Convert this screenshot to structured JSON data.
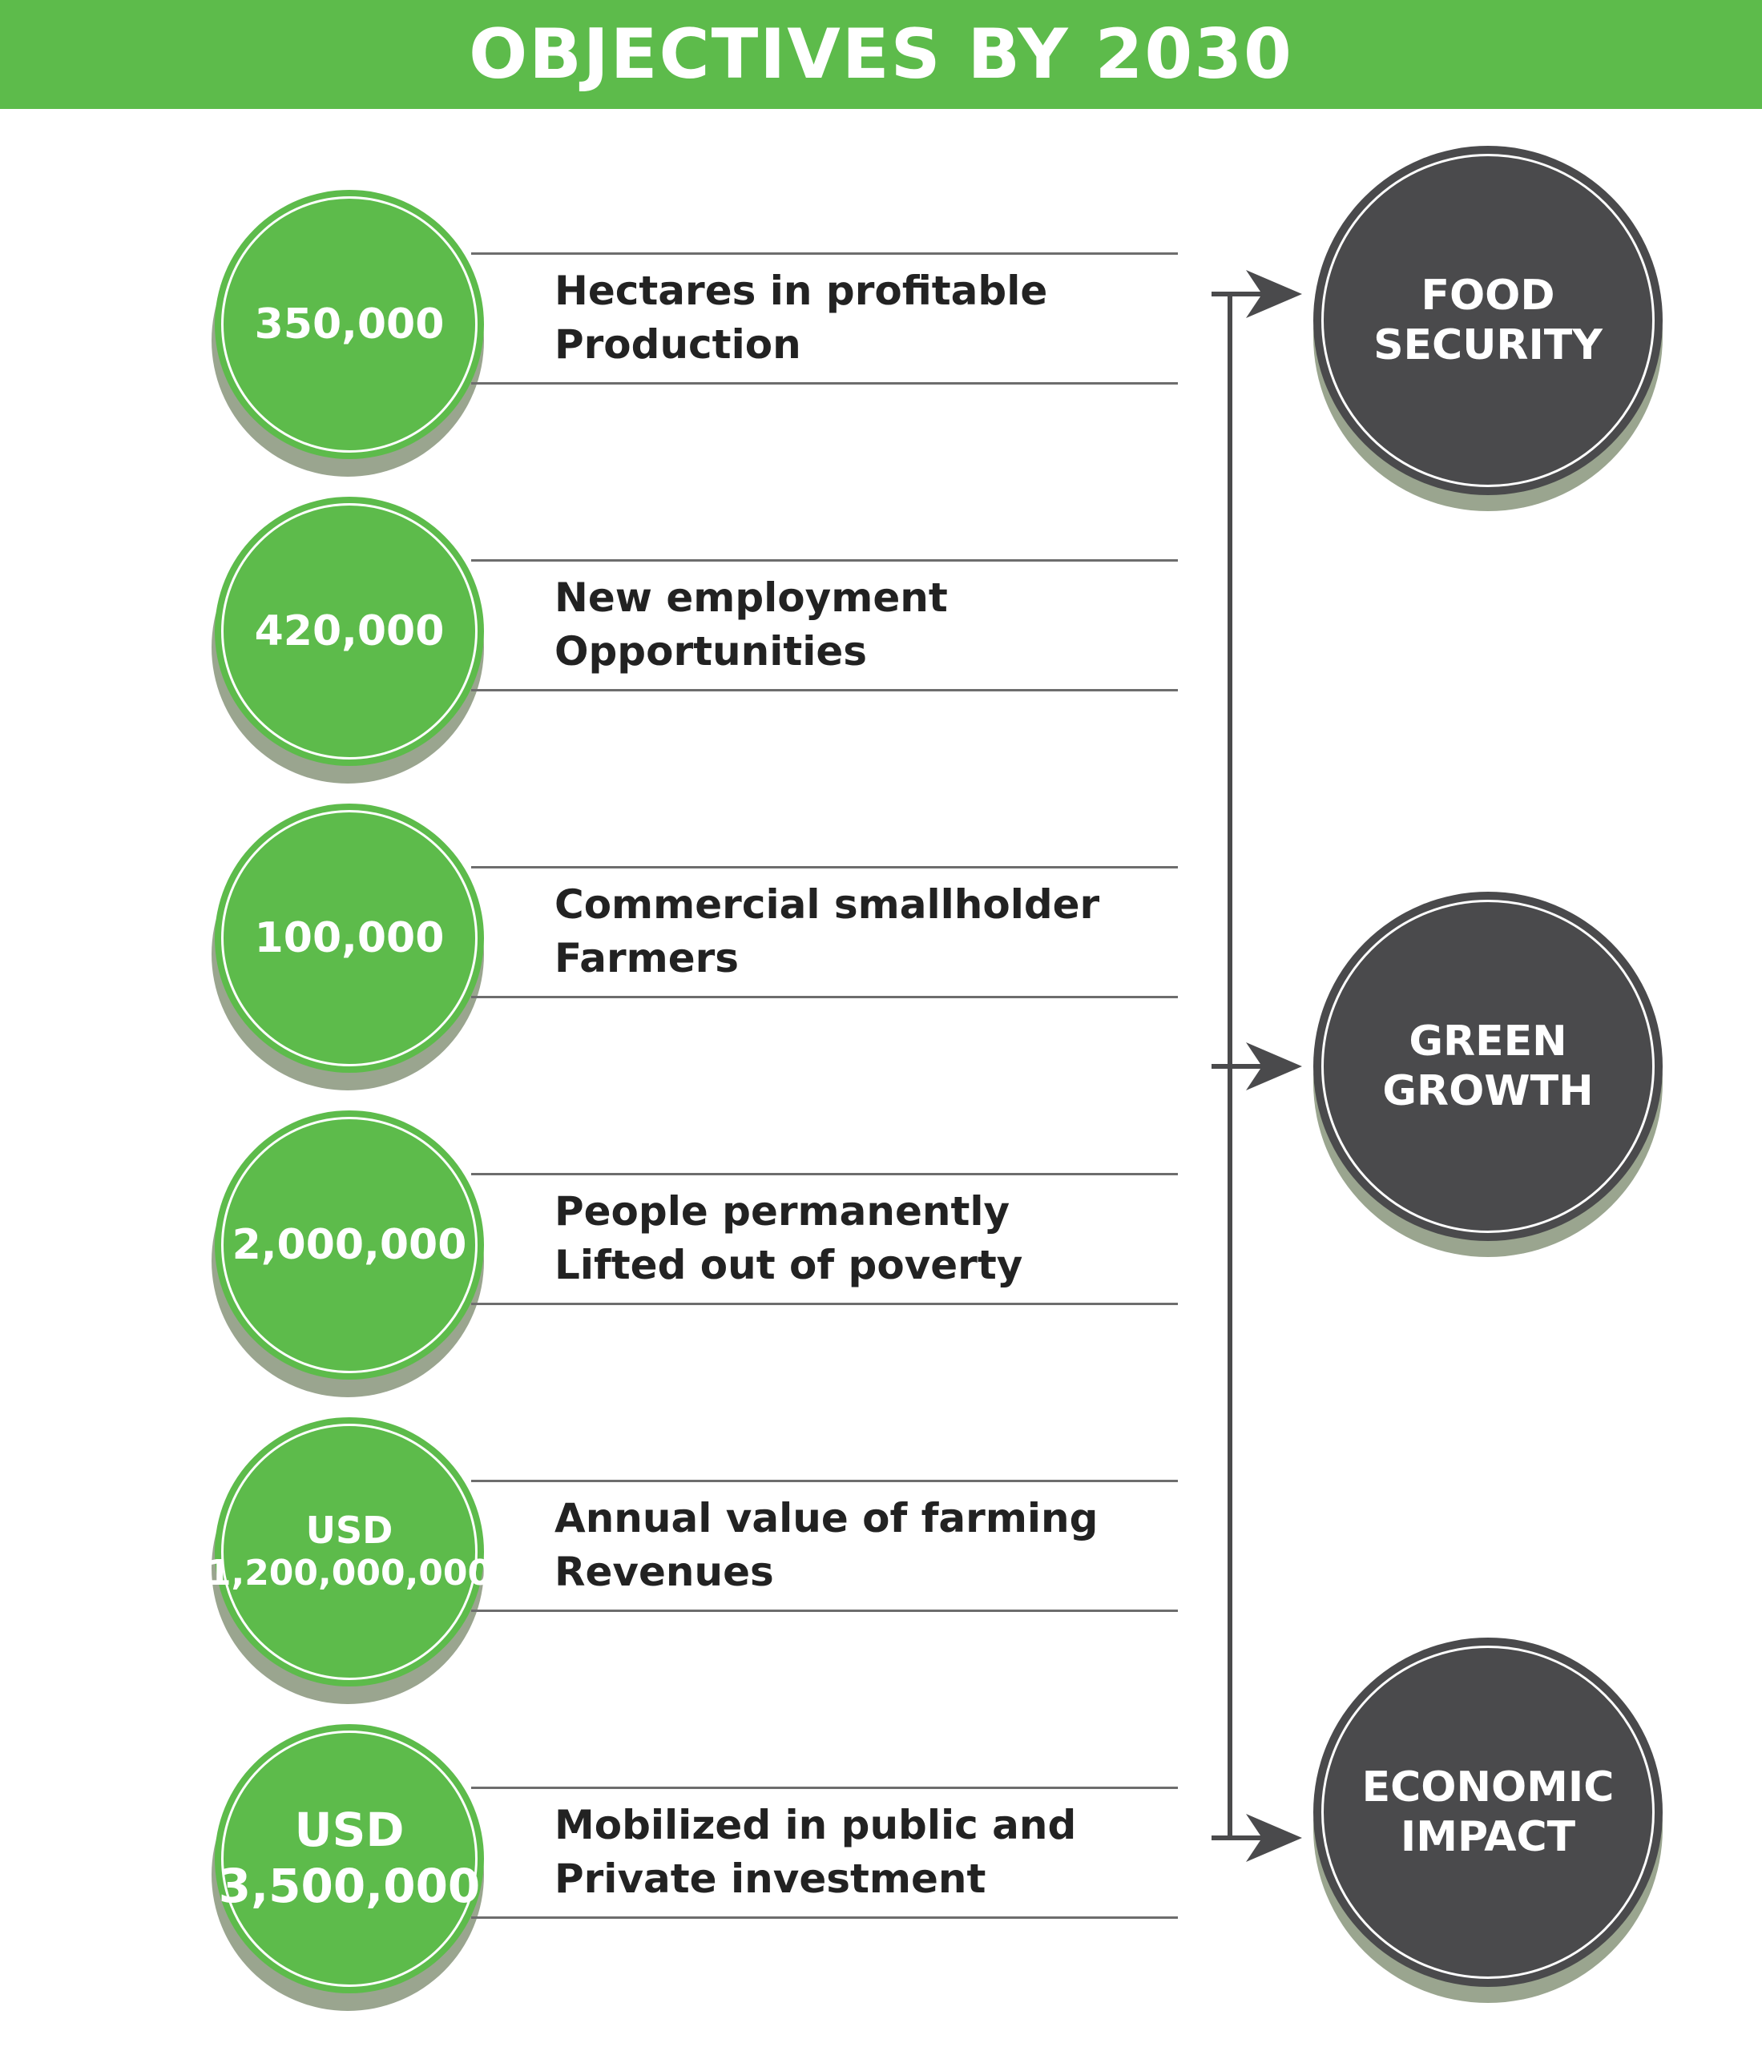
{
  "title": "OBJECTIVES BY 2030",
  "objectives": [
    {
      "value_lines": [
        "350,000"
      ],
      "desc_lines": [
        "Hectares in profitable",
        "Production"
      ]
    },
    {
      "value_lines": [
        "420,000"
      ],
      "desc_lines": [
        "New employment",
        "Opportunities"
      ]
    },
    {
      "value_lines": [
        "100,000"
      ],
      "desc_lines": [
        "Commercial smallholder",
        "Farmers"
      ]
    },
    {
      "value_lines": [
        "2,000,000"
      ],
      "desc_lines": [
        "People permanently",
        "Lifted out of poverty"
      ]
    },
    {
      "value_lines": [
        "USD",
        "1,200,000,000"
      ],
      "desc_lines": [
        "Annual value of farming",
        "Revenues"
      ]
    },
    {
      "value_lines": [
        "USD",
        "3,500,000"
      ],
      "desc_lines": [
        "Mobilized in public and",
        "Private investment"
      ]
    }
  ],
  "outcomes": [
    {
      "lines": [
        "FOOD",
        "SECURITY"
      ]
    },
    {
      "lines": [
        "GREEN",
        "GROWTH"
      ]
    },
    {
      "lines": [
        "ECONOMIC",
        "IMPACT"
      ]
    }
  ],
  "colors": {
    "green": "#5dbb4b",
    "dark": "#4a4a4c",
    "shadow": "#9aa58f"
  }
}
